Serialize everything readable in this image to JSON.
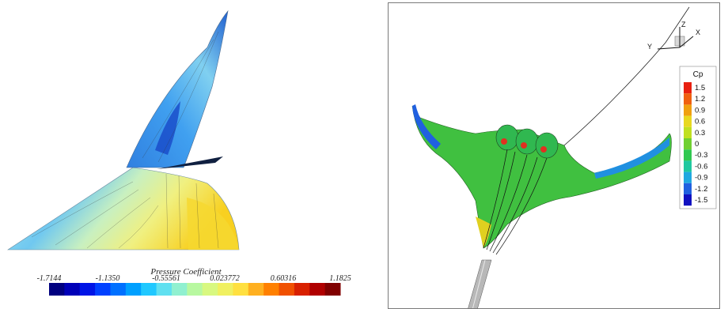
{
  "left_figure": {
    "colorbar": {
      "title": "Pressure Coefficient",
      "ticks": [
        "-1.7144",
        "-1.1350",
        "-0.55561",
        "0.023772",
        "0.60316",
        "1.1825"
      ],
      "colors": [
        "#000080",
        "#0000b8",
        "#0014e6",
        "#0040ff",
        "#0070ff",
        "#00a0ff",
        "#20c8ff",
        "#60e0f0",
        "#90f0d0",
        "#b8f8a0",
        "#d8f880",
        "#f0f060",
        "#ffe040",
        "#ffb020",
        "#ff8000",
        "#f05000",
        "#d82000",
        "#b00000",
        "#800000"
      ]
    }
  },
  "right_figure": {
    "legend": {
      "title": "Cp",
      "ticks": [
        "1.5",
        "1.2",
        "0.9",
        "0.6",
        "0.3",
        "0",
        "-0.3",
        "-0.6",
        "-0.9",
        "-1.2",
        "-1.5"
      ],
      "colors": [
        "#e82010",
        "#f06010",
        "#f0a010",
        "#e8d820",
        "#c0e020",
        "#70d030",
        "#30c850",
        "#20c8a0",
        "#20a8e0",
        "#2060e0",
        "#1010c0"
      ]
    },
    "axes": {
      "x": "X",
      "y": "Y",
      "z": "Z"
    }
  }
}
